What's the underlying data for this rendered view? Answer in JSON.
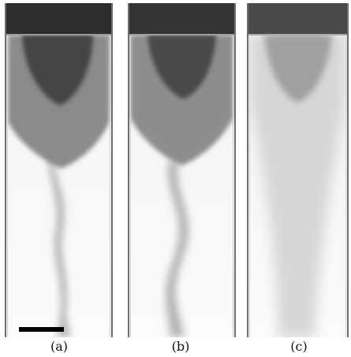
{
  "figure": {
    "panels": [
      {
        "id": "a",
        "caption": "(a)"
      },
      {
        "id": "b",
        "caption": "(b)"
      },
      {
        "id": "c",
        "caption": "(c)"
      }
    ]
  }
}
